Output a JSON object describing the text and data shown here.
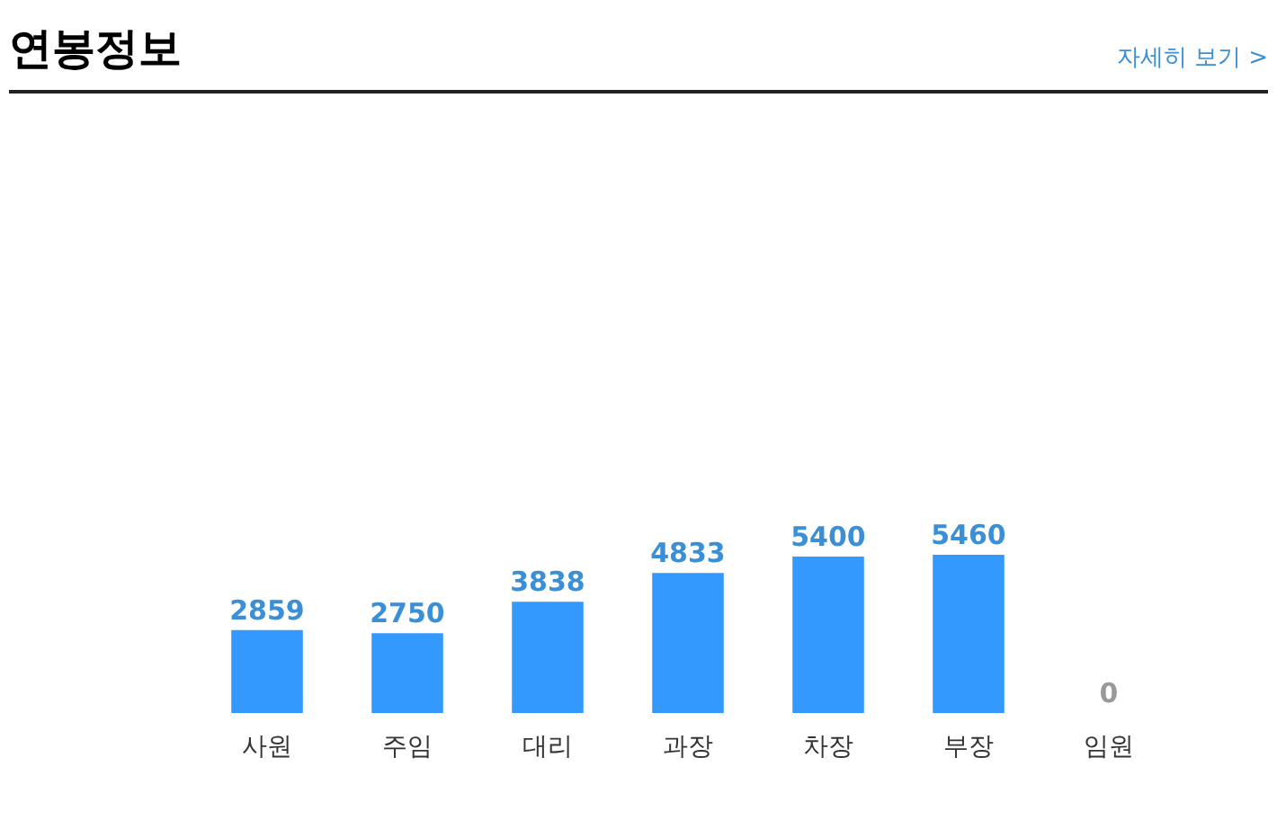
{
  "chart_data": {
    "type": "bar",
    "title": "연봉정보",
    "annotations": [
      "자세히 보기 >"
    ],
    "categories": [
      "사원",
      "주임",
      "대리",
      "과장",
      "차장",
      "부장",
      "임원"
    ],
    "values": [
      2859,
      2750,
      3838,
      4833,
      5400,
      5460,
      0
    ],
    "color": "#3399ff",
    "data_labels": true,
    "grid": false
  }
}
